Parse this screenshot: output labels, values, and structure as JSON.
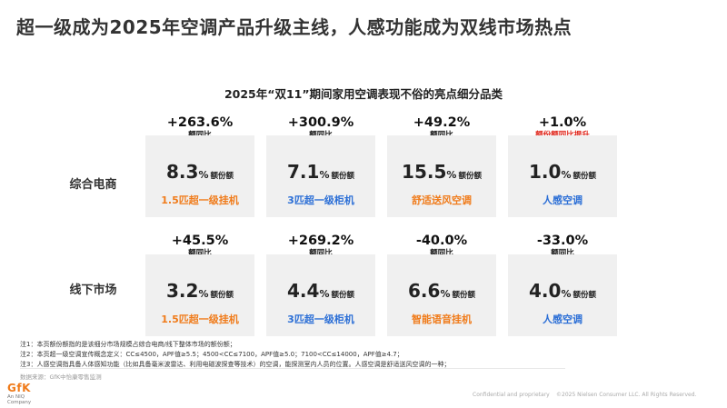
{
  "title": "超一级成为2025年空调产品升级主线，人感功能成为双线市场热点",
  "subtitle": "2025年“双11”期间家用空调表现不俗的亮点细分品类",
  "rows": [
    {
      "label": "综合电商",
      "items": [
        {
          "growth": "+263.6%",
          "growth_label": "额同比",
          "share_num": "8.3",
          "share_pct": "%",
          "share_unit": "额份额",
          "category": "1.5匹超一级挂机",
          "color": "orange",
          "label_red": false
        },
        {
          "growth": "+300.9%",
          "growth_label": "额同比",
          "share_num": "7.1",
          "share_pct": "%",
          "share_unit": "额份额",
          "category": "3匹超一级柜机",
          "color": "blue",
          "label_red": false
        },
        {
          "growth": "+49.2%",
          "growth_label": "额同比",
          "share_num": "15.5",
          "share_pct": "%",
          "share_unit": "额份额",
          "category": "舒适送风空调",
          "color": "orange",
          "label_red": false
        },
        {
          "growth": "+1.0%",
          "growth_label": "额份额同比提升",
          "share_num": "1.0",
          "share_pct": "%",
          "share_unit": "额份额",
          "category": "人感空调",
          "color": "blue",
          "label_red": true
        }
      ]
    },
    {
      "label": "线下市场",
      "items": [
        {
          "growth": "+45.5%",
          "growth_label": "额同比",
          "share_num": "3.2",
          "share_pct": "%",
          "share_unit": "额份额",
          "category": "1.5匹超一级挂机",
          "color": "orange",
          "label_red": false
        },
        {
          "growth": "+269.2%",
          "growth_label": "额同比",
          "share_num": "4.4",
          "share_pct": "%",
          "share_unit": "额份额",
          "category": "3匹超一级柜机",
          "color": "blue",
          "label_red": false
        },
        {
          "growth": "-40.0%",
          "growth_label": "额同比",
          "share_num": "6.6",
          "share_pct": "%",
          "share_unit": "额份额",
          "category": "智能语音挂机",
          "color": "orange",
          "label_red": false
        },
        {
          "growth": "-33.0%",
          "growth_label": "额同比",
          "share_num": "4.0",
          "share_pct": "%",
          "share_unit": "额份额",
          "category": "人感空调",
          "color": "blue",
          "label_red": false
        }
      ]
    }
  ],
  "notes": [
    "注1：本页额份额指的是该细分市场规模占综合电商/线下整体市场的额份额；",
    "注2：本页超一级空调宣传概念定义：CC≤4500，APF值≥5.5；4500<CC≤7100，APF值≥5.0；7100<CC≤14000，APF值≥4.7；",
    "注3：人感空调指具备人体感知功能（比如具备毫米波雷达、利用电磁波探查等技术）的空调，能探测室内人员的位置。人感空调是舒适送风空调的一种；"
  ],
  "source": "数据来源：GfK中怡康零售监测",
  "logo": {
    "main": "GfK",
    "sub1": "An NIQ",
    "sub2": "Company"
  },
  "footer": {
    "left": "Confidential and proprietary",
    "right": "©2025 Nielsen Consumer LLC. All Rights Reserved."
  },
  "colors": {
    "orange": "#f07b1a",
    "blue": "#2c6fd6",
    "red": "#e0261b",
    "card_bg": "#f0f0f0"
  }
}
